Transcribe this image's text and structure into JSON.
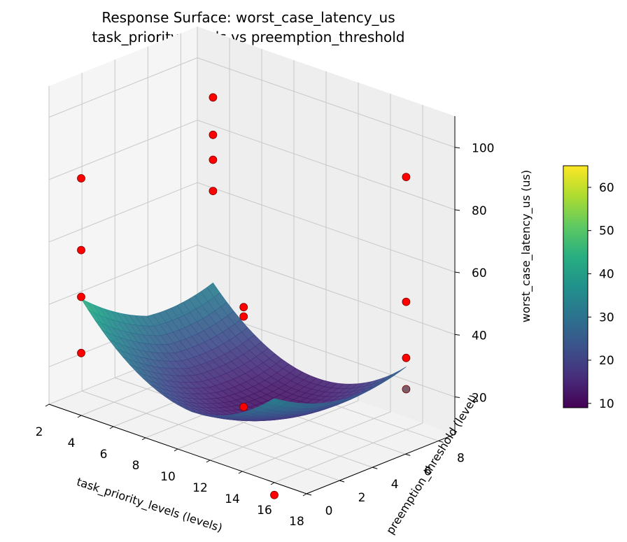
{
  "chart_data": {
    "type": "surface3d",
    "title_line1": "Response Surface: worst_case_latency_us",
    "title_line2": "task_priority_levels vs preemption_threshold",
    "xlabel": "task_priority_levels (levels)",
    "ylabel": "preemption_threshold (level)",
    "zlabel": "worst_case_latency_us (us)",
    "x_ticks": [
      "2",
      "4",
      "6",
      "8",
      "10",
      "12",
      "14",
      "16",
      "18"
    ],
    "y_ticks": [
      "0",
      "2",
      "4",
      "6",
      "8"
    ],
    "z_ticks": [
      "20",
      "40",
      "60",
      "80",
      "100"
    ],
    "colorbar_ticks": [
      "10",
      "20",
      "30",
      "40",
      "50",
      "60"
    ],
    "colorbar_range": [
      9,
      65
    ],
    "colormap": "viridis",
    "surface": {
      "x_range": [
        4,
        16
      ],
      "y_range": [
        0,
        8
      ],
      "approx_min": 9,
      "approx_max": 65
    },
    "points": [
      {
        "x": 4,
        "y": 0,
        "z": 28
      },
      {
        "x": 4,
        "y": 0,
        "z": 46
      },
      {
        "x": 4,
        "y": 0,
        "z": 61
      },
      {
        "x": 4,
        "y": 0,
        "z": 84
      },
      {
        "x": 4,
        "y": 8,
        "z": 63
      },
      {
        "x": 4,
        "y": 8,
        "z": 73
      },
      {
        "x": 4,
        "y": 8,
        "z": 81
      },
      {
        "x": 4,
        "y": 8,
        "z": 93
      },
      {
        "x": 10,
        "y": 4,
        "z": 13
      },
      {
        "x": 10,
        "y": 4,
        "z": 42
      },
      {
        "x": 10,
        "y": 4,
        "z": 45
      },
      {
        "x": 16,
        "y": 0,
        "z": 4
      },
      {
        "x": 16,
        "y": 8,
        "z": 21
      },
      {
        "x": 16,
        "y": 8,
        "z": 31
      },
      {
        "x": 16,
        "y": 8,
        "z": 49
      },
      {
        "x": 16,
        "y": 8,
        "z": 89
      }
    ]
  }
}
